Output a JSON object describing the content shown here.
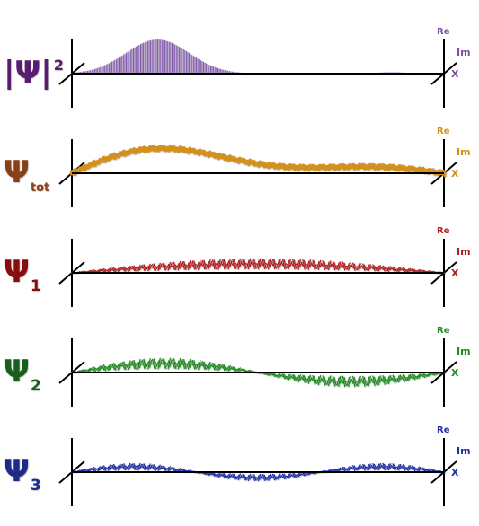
{
  "panels": [
    {
      "id": "prob",
      "label_main": "|Ψ|",
      "label_sup": "2",
      "label_sub": "",
      "color": "#7b4fa8",
      "label_color": "#5a1e6e",
      "axis_re": "Re",
      "axis_im": "Im",
      "axis_x": "X",
      "kind": "density"
    },
    {
      "id": "total",
      "label_main": "Ψ",
      "label_sup": "",
      "label_sub": "tot",
      "color": "#d4901e",
      "label_color": "#8a3f12",
      "axis_re": "Re",
      "axis_im": "Im",
      "axis_x": "X",
      "kind": "total"
    },
    {
      "id": "psi1",
      "label_main": "Ψ",
      "label_sup": "",
      "label_sub": "1",
      "color": "#b01e1e",
      "label_color": "#8a1010",
      "axis_re": "Re",
      "axis_im": "Im",
      "axis_x": "X",
      "kind": "mode1"
    },
    {
      "id": "psi2",
      "label_main": "Ψ",
      "label_sup": "",
      "label_sub": "2",
      "color": "#1f8a1f",
      "label_color": "#14601a",
      "axis_re": "Re",
      "axis_im": "Im",
      "axis_x": "X",
      "kind": "mode2"
    },
    {
      "id": "psi3",
      "label_main": "Ψ",
      "label_sup": "",
      "label_sub": "3",
      "color": "#1f2fa8",
      "label_color": "#1a2a8a",
      "axis_re": "Re",
      "axis_im": "Im",
      "axis_x": "X",
      "kind": "mode3"
    }
  ]
}
